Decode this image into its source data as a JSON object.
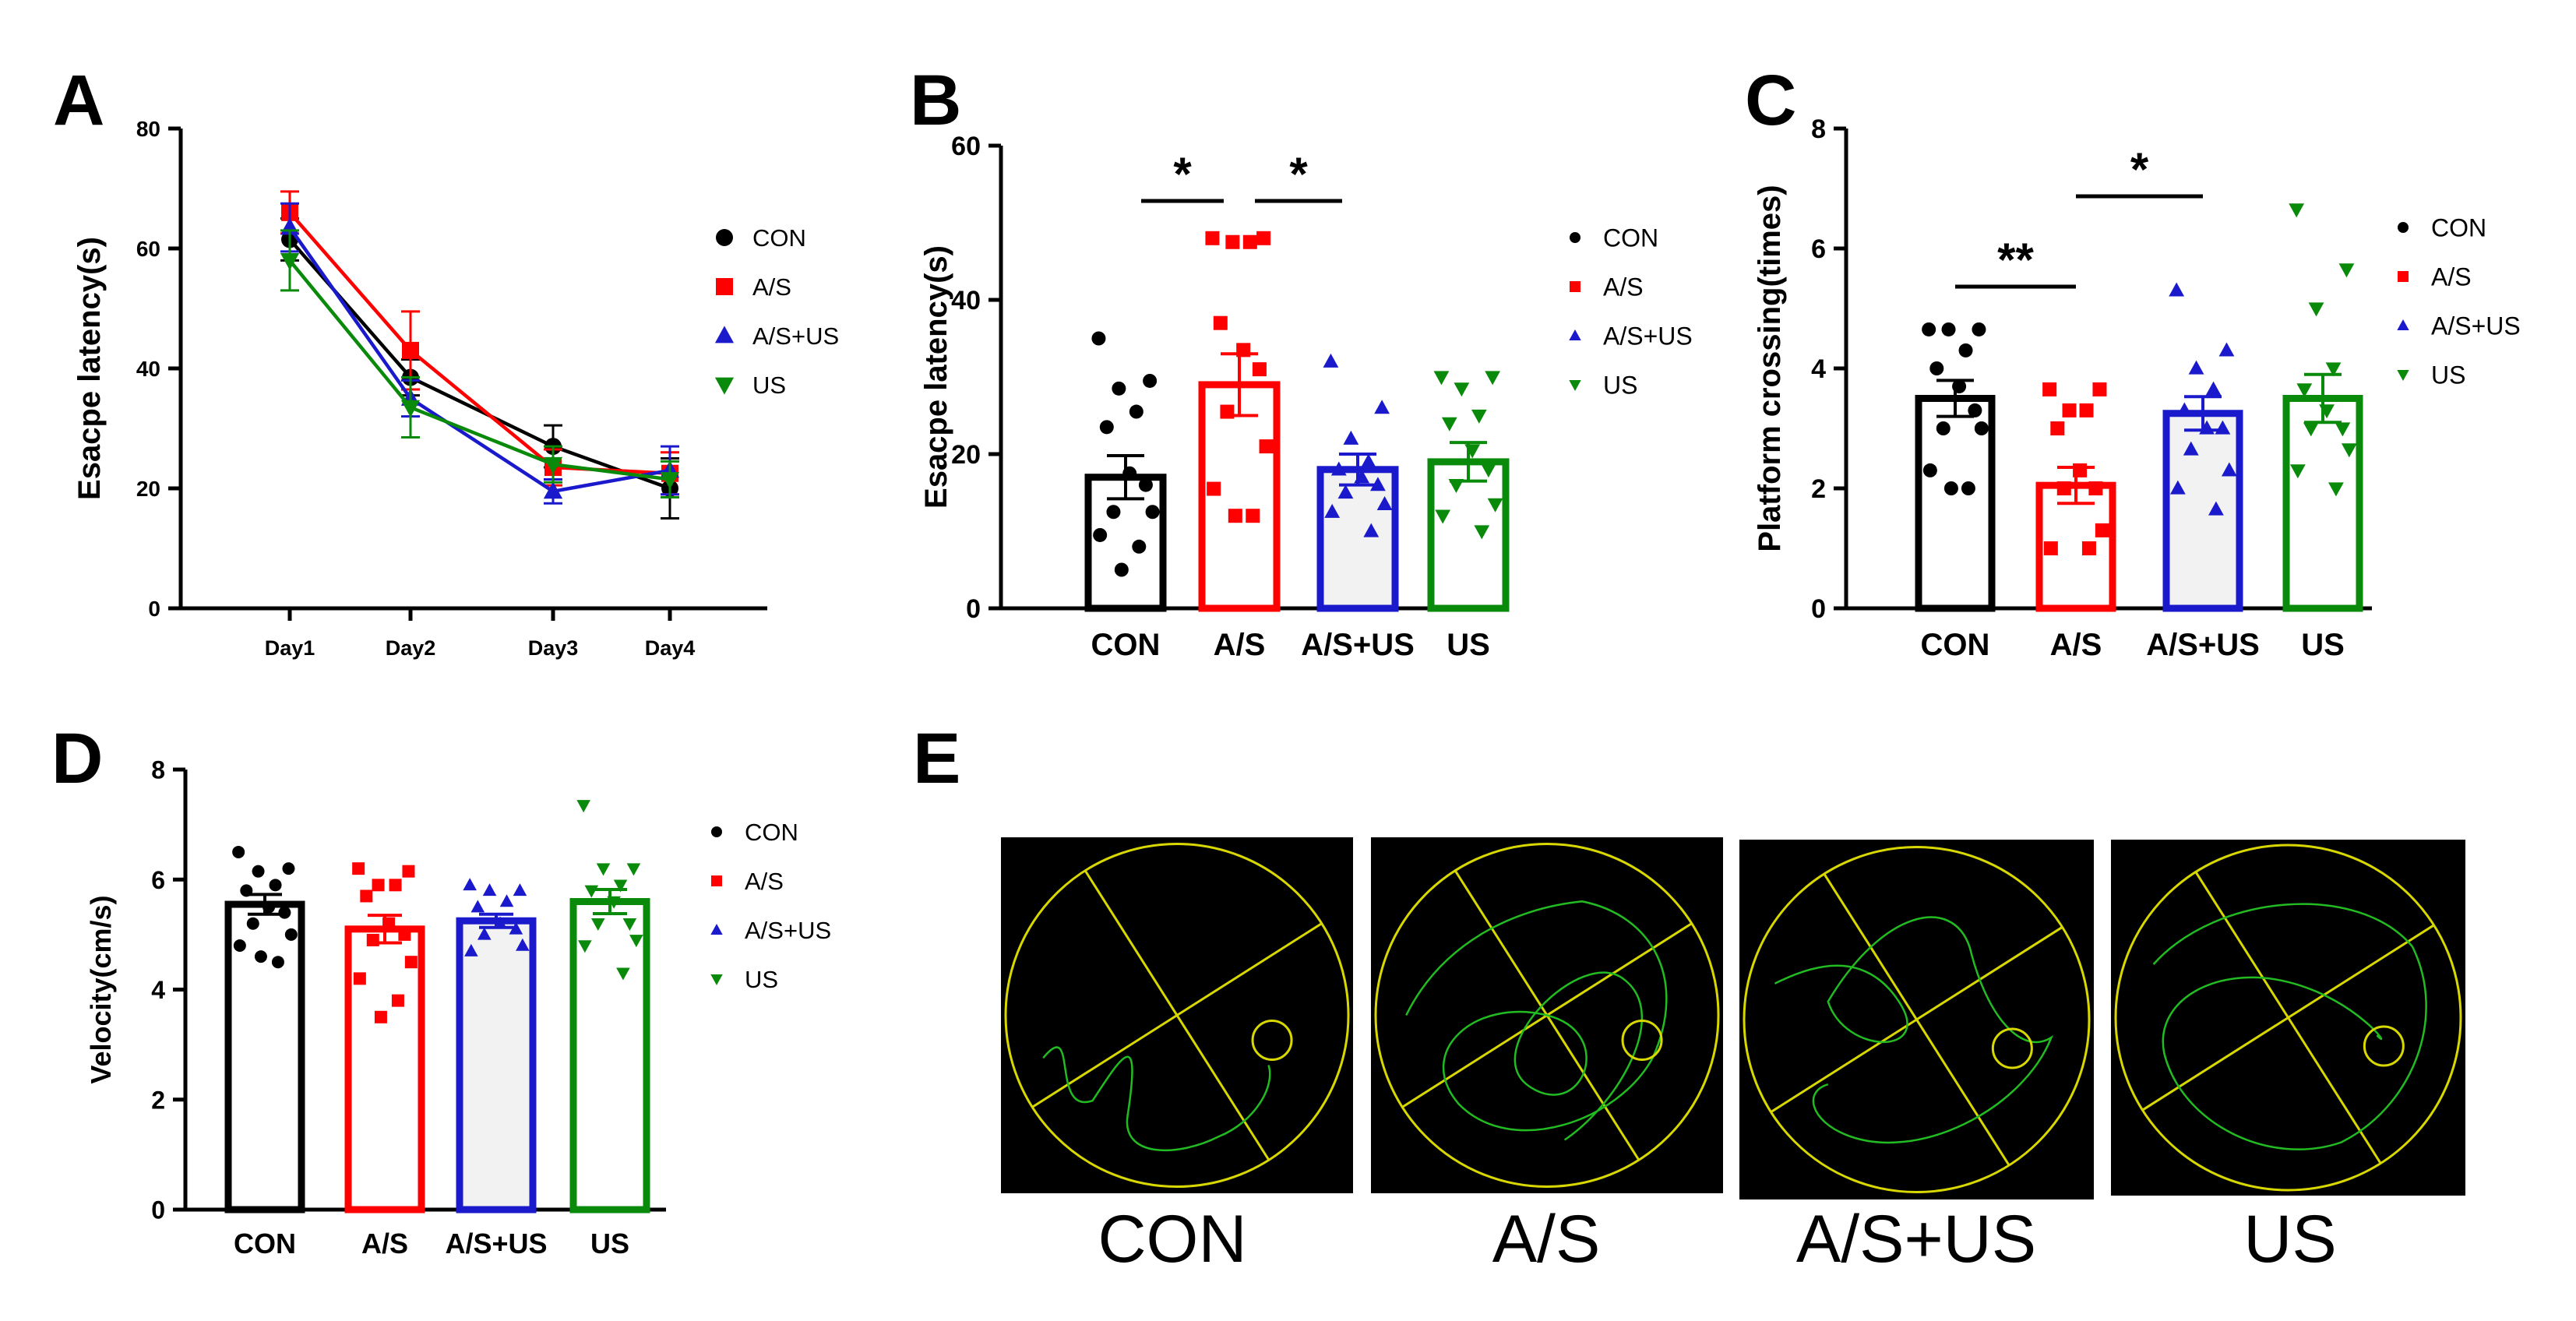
{
  "colors": {
    "CON": "#000000",
    "A/S": "#ff0000",
    "A/S+US": "#1a1acc",
    "US": "#0a8a0a",
    "arena_bg": "#000000",
    "arena_line": "#d8d800",
    "track": "#22bb22"
  },
  "legend_entries": [
    "CON",
    "A/S",
    "A/S+US",
    "US"
  ],
  "markers": {
    "CON": "circle",
    "A/S": "square",
    "A/S+US": "triangle-up",
    "US": "triangle-down"
  },
  "chart_data": [
    {
      "panel": "A",
      "type": "line",
      "categories": [
        "Day1",
        "Day2",
        "Day3",
        "Day4"
      ],
      "ylabel": "Esacpe latency(s)",
      "xlabel": "",
      "ylim": [
        0,
        80
      ],
      "yticks": [
        0,
        20,
        40,
        60,
        80
      ],
      "legend": "right",
      "series": [
        {
          "name": "CON",
          "values": [
            61.5,
            38.5,
            27,
            20
          ],
          "errors": [
            3.5,
            3,
            3.5,
            5
          ]
        },
        {
          "name": "A/S",
          "values": [
            66,
            43,
            23.5,
            22.5
          ],
          "errors": [
            3.5,
            6.5,
            3,
            3.5
          ]
        },
        {
          "name": "A/S+US",
          "values": [
            63.5,
            35,
            19.5,
            23
          ],
          "errors": [
            4,
            3,
            2,
            4
          ]
        },
        {
          "name": "US",
          "values": [
            58,
            33.5,
            24,
            21.5
          ],
          "errors": [
            5,
            5,
            3,
            3
          ]
        }
      ]
    },
    {
      "panel": "B",
      "type": "bar",
      "categories": [
        "CON",
        "A/S",
        "A/S+US",
        "US"
      ],
      "ylabel": "Esacpe latency(s)",
      "xlabel": "",
      "ylim": [
        0,
        60
      ],
      "yticks": [
        0,
        20,
        40,
        60
      ],
      "legend": "right",
      "values": [
        17,
        29,
        18,
        19
      ],
      "errors": [
        2.8,
        4,
        2,
        2.5
      ],
      "points": [
        [
          35,
          29.5,
          28.5,
          25.5,
          23.5,
          17.5,
          16,
          12.5,
          12.5,
          9.5,
          8,
          5
        ],
        [
          48,
          48,
          47.5,
          47.5,
          37,
          33.5,
          31,
          25.5,
          21,
          15.5,
          12,
          12
        ],
        [
          32,
          26,
          22,
          19,
          18,
          17,
          16,
          15,
          13.5,
          12.5,
          10
        ],
        [
          30,
          30,
          28.5,
          25,
          24,
          20.5,
          18,
          16,
          13.5,
          12,
          10
        ]
      ],
      "significance": [
        {
          "from": 0,
          "to": 1,
          "label": "*"
        },
        {
          "from": 1,
          "to": 2,
          "label": "*"
        }
      ]
    },
    {
      "panel": "C",
      "type": "bar",
      "categories": [
        "CON",
        "A/S",
        "A/S+US",
        "US"
      ],
      "ylabel": "Platform crossing(times)",
      "xlabel": "",
      "ylim": [
        0,
        8
      ],
      "yticks": [
        0,
        2,
        4,
        6,
        8
      ],
      "legend": "right",
      "values": [
        3.5,
        2.05,
        3.25,
        3.5
      ],
      "errors": [
        0.3,
        0.3,
        0.28,
        0.4
      ],
      "points": [
        [
          4.65,
          4.65,
          4.65,
          4.3,
          4.0,
          3.7,
          3.3,
          3.0,
          3.0,
          2.3,
          2.0,
          2.0
        ],
        [
          3.65,
          3.65,
          3.3,
          3.3,
          3.0,
          2.3,
          2.0,
          2.0,
          1.3,
          1.0,
          1.0
        ],
        [
          5.3,
          4.3,
          4.0,
          3.65,
          3.3,
          3.0,
          3.0,
          2.65,
          2.3,
          2.0,
          1.65
        ],
        [
          6.65,
          5.65,
          5.0,
          4.0,
          3.65,
          3.3,
          3.0,
          3.0,
          2.65,
          2.3,
          2.0
        ]
      ],
      "significance": [
        {
          "from": 0,
          "to": 1,
          "label": "**"
        },
        {
          "from": 1,
          "to": 2,
          "label": "*"
        }
      ]
    },
    {
      "panel": "D",
      "type": "bar",
      "categories": [
        "CON",
        "A/S",
        "A/S+US",
        "US"
      ],
      "ylabel": "Velocity(cm/s)",
      "xlabel": "",
      "ylim": [
        0,
        8
      ],
      "yticks": [
        0,
        2,
        4,
        6,
        8
      ],
      "legend": "right",
      "values": [
        5.55,
        5.1,
        5.25,
        5.6
      ],
      "errors": [
        0.18,
        0.25,
        0.12,
        0.22
      ],
      "points": [
        [
          6.5,
          6.2,
          6.15,
          5.9,
          5.8,
          5.5,
          5.4,
          5.2,
          5.0,
          4.8,
          4.5,
          4.6
        ],
        [
          6.2,
          6.15,
          5.9,
          5.9,
          5.7,
          5.2,
          5.0,
          4.9,
          4.5,
          4.2,
          3.8,
          3.5
        ],
        [
          5.9,
          5.8,
          5.8,
          5.6,
          5.5,
          5.2,
          5.1,
          5.0,
          4.8,
          4.7
        ],
        [
          7.35,
          6.2,
          6.2,
          5.9,
          5.8,
          5.6,
          5.2,
          5.2,
          4.9,
          4.8,
          4.3
        ]
      ]
    }
  ],
  "panel_labels": {
    "A": "A",
    "B": "B",
    "C": "C",
    "D": "D",
    "E": "E"
  },
  "panel_e": {
    "captions": [
      "CON",
      "A/S",
      "A/S+US",
      "US"
    ]
  }
}
